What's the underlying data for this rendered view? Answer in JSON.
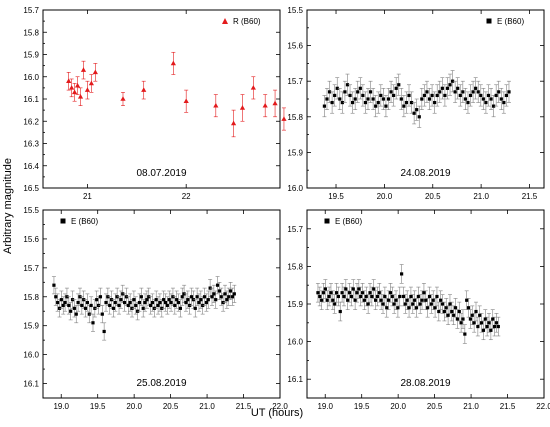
{
  "figure": {
    "xlabel": "UT (hours)",
    "ylabel": "Arbitrary magnitude"
  },
  "chart_data": [
    {
      "type": "scatter",
      "panel": "top-left",
      "date": "08.07.2019",
      "legend": "R (B60)",
      "legend_position": "top-right",
      "marker": "triangle",
      "color": "#e31a1c",
      "grid": false,
      "xlim": [
        20.55,
        22.95
      ],
      "ylim": [
        16.5,
        15.7
      ],
      "x_ticks": [
        21,
        22
      ],
      "x_tick_labels": [
        "21",
        "22"
      ],
      "y_ticks": [
        15.7,
        15.8,
        15.9,
        16.0,
        16.1,
        16.2,
        16.3,
        16.4,
        16.5
      ],
      "y_tick_labels": [
        "15.7",
        "15.8",
        "15.9",
        "16.0",
        "16.1",
        "16.2",
        "16.3",
        "16.4",
        "16.5"
      ],
      "series": [
        {
          "x": [
            20.81,
            20.84,
            20.87,
            20.9,
            20.93,
            20.96,
            21.0,
            21.04,
            21.08,
            21.36,
            21.57,
            21.87,
            22.0,
            22.3,
            22.48,
            22.57,
            22.68,
            22.8,
            22.9,
            22.99
          ],
          "y": [
            16.02,
            16.05,
            16.07,
            16.04,
            16.09,
            15.97,
            16.06,
            16.03,
            15.98,
            16.1,
            16.06,
            15.94,
            16.11,
            16.13,
            16.21,
            16.14,
            16.05,
            16.13,
            16.12,
            16.19
          ],
          "err": [
            0.04,
            0.04,
            0.04,
            0.04,
            0.04,
            0.04,
            0.04,
            0.04,
            0.04,
            0.03,
            0.04,
            0.05,
            0.05,
            0.05,
            0.06,
            0.06,
            0.05,
            0.05,
            0.06,
            0.05
          ]
        }
      ]
    },
    {
      "type": "scatter",
      "panel": "top-right",
      "date": "24.08.2019",
      "legend": "E (B60)",
      "legend_position": "top-right",
      "marker": "square",
      "color": "#000000",
      "grid": false,
      "xlim": [
        19.2,
        21.65
      ],
      "ylim": [
        16.0,
        15.5
      ],
      "x_ticks": [
        19.5,
        20.0,
        20.5,
        21.0,
        21.5
      ],
      "x_tick_labels": [
        "19.5",
        "20.0",
        "20.5",
        "21.0",
        "21.5"
      ],
      "y_ticks": [
        15.5,
        15.6,
        15.7,
        15.8,
        15.9,
        16.0
      ],
      "y_tick_labels": [
        "15.5",
        "15.6",
        "15.7",
        "15.8",
        "15.9",
        "16.0"
      ],
      "series": [
        {
          "x_start": 19.38,
          "x_step": 0.0265,
          "y": [
            15.77,
            15.75,
            15.73,
            15.76,
            15.74,
            15.72,
            15.75,
            15.76,
            15.73,
            15.71,
            15.74,
            15.76,
            15.75,
            15.73,
            15.72,
            15.74,
            15.76,
            15.75,
            15.73,
            15.75,
            15.77,
            15.76,
            15.74,
            15.75,
            15.77,
            15.75,
            15.73,
            15.74,
            15.72,
            15.71,
            15.75,
            15.77,
            15.76,
            15.74,
            15.76,
            15.79,
            15.78,
            15.8,
            15.75,
            15.74,
            15.73,
            15.75,
            15.74,
            15.76,
            15.74,
            15.73,
            15.72,
            15.74,
            15.72,
            15.71,
            15.7,
            15.73,
            15.72,
            15.74,
            15.73,
            15.75,
            15.76,
            15.74,
            15.73,
            15.72,
            15.73,
            15.74,
            15.75,
            15.76,
            15.74,
            15.75,
            15.77,
            15.74,
            15.73,
            15.75,
            15.76,
            15.74,
            15.73
          ],
          "err": 0.03
        }
      ]
    },
    {
      "type": "scatter",
      "panel": "bottom-left",
      "date": "25.08.2019",
      "legend": "E (B60)",
      "legend_position": "top-left",
      "marker": "square",
      "color": "#000000",
      "grid": false,
      "xlim": [
        18.75,
        22.0
      ],
      "ylim": [
        16.15,
        15.5
      ],
      "x_ticks": [
        19.0,
        19.5,
        20.0,
        20.5,
        21.0,
        21.5,
        22.0
      ],
      "x_tick_labels": [
        "19.0",
        "19.5",
        "20.0",
        "20.5",
        "21.0",
        "21.5",
        "22.0"
      ],
      "y_ticks": [
        15.5,
        15.6,
        15.7,
        15.8,
        15.9,
        16.0,
        16.1
      ],
      "y_tick_labels": [
        "15.5",
        "15.6",
        "15.7",
        "15.8",
        "15.9",
        "16.0",
        "16.1"
      ],
      "series": [
        {
          "x_start": 18.9,
          "x_step": 0.0255,
          "y": [
            15.76,
            15.8,
            15.82,
            15.84,
            15.81,
            15.83,
            15.82,
            15.8,
            15.83,
            15.85,
            15.81,
            15.84,
            15.86,
            15.82,
            15.8,
            15.83,
            15.81,
            15.84,
            15.82,
            15.86,
            15.83,
            15.89,
            15.84,
            15.81,
            15.83,
            15.8,
            15.86,
            15.92,
            15.82,
            15.8,
            15.83,
            15.81,
            15.84,
            15.82,
            15.8,
            15.83,
            15.81,
            15.79,
            15.82,
            15.8,
            15.83,
            15.82,
            15.84,
            15.81,
            15.83,
            15.85,
            15.82,
            15.8,
            15.84,
            15.82,
            15.81,
            15.8,
            15.83,
            15.82,
            15.84,
            15.81,
            15.83,
            15.82,
            15.84,
            15.81,
            15.82,
            15.83,
            15.81,
            15.82,
            15.8,
            15.83,
            15.81,
            15.82,
            15.84,
            15.8,
            15.79,
            15.82,
            15.81,
            15.83,
            15.8,
            15.81,
            15.84,
            15.8,
            15.82,
            15.81,
            15.83,
            15.8,
            15.82,
            15.81,
            15.77,
            15.8,
            15.79,
            15.81,
            15.76,
            15.78,
            15.8,
            15.82,
            15.79,
            15.81,
            15.8,
            15.78,
            15.8,
            15.79
          ],
          "err": 0.03
        }
      ]
    },
    {
      "type": "scatter",
      "panel": "bottom-right",
      "date": "28.08.2019",
      "legend": "E (B60)",
      "legend_position": "top-left",
      "marker": "square",
      "color": "#000000",
      "grid": false,
      "xlim": [
        18.75,
        22.0
      ],
      "ylim": [
        16.15,
        15.65
      ],
      "x_ticks": [
        19.0,
        19.5,
        20.0,
        20.5,
        21.0,
        21.5,
        22.0
      ],
      "x_tick_labels": [
        "19.0",
        "19.5",
        "20.0",
        "20.5",
        "21.0",
        "21.5",
        "22.0"
      ],
      "y_ticks": [
        15.7,
        15.8,
        15.9,
        16.0,
        16.1
      ],
      "y_tick_labels": [
        "15.7",
        "15.8",
        "15.9",
        "16.0",
        "16.1"
      ],
      "series": [
        {
          "x_start": 18.9,
          "x_step": 0.0255,
          "y": [
            15.87,
            15.88,
            15.89,
            15.87,
            15.86,
            15.89,
            15.88,
            15.87,
            15.89,
            15.9,
            15.87,
            15.88,
            15.92,
            15.87,
            15.88,
            15.86,
            15.89,
            15.87,
            15.88,
            15.86,
            15.89,
            15.87,
            15.86,
            15.88,
            15.87,
            15.89,
            15.88,
            15.9,
            15.87,
            15.88,
            15.86,
            15.89,
            15.88,
            15.87,
            15.89,
            15.9,
            15.88,
            15.91,
            15.89,
            15.87,
            15.88,
            15.9,
            15.89,
            15.91,
            15.88,
            15.82,
            15.88,
            15.9,
            15.89,
            15.91,
            15.88,
            15.9,
            15.89,
            15.91,
            15.88,
            15.9,
            15.89,
            15.87,
            15.89,
            15.91,
            15.88,
            15.9,
            15.89,
            15.91,
            15.88,
            15.92,
            15.89,
            15.9,
            15.92,
            15.91,
            15.93,
            15.9,
            15.92,
            15.93,
            15.91,
            15.94,
            15.92,
            15.95,
            15.94,
            15.98,
            15.89,
            15.91,
            15.94,
            15.93,
            15.95,
            15.92,
            15.96,
            15.93,
            15.95,
            15.97,
            15.94,
            15.96,
            15.95,
            15.97,
            15.94,
            15.96,
            15.95,
            15.96
          ],
          "err": 0.025
        }
      ]
    }
  ]
}
